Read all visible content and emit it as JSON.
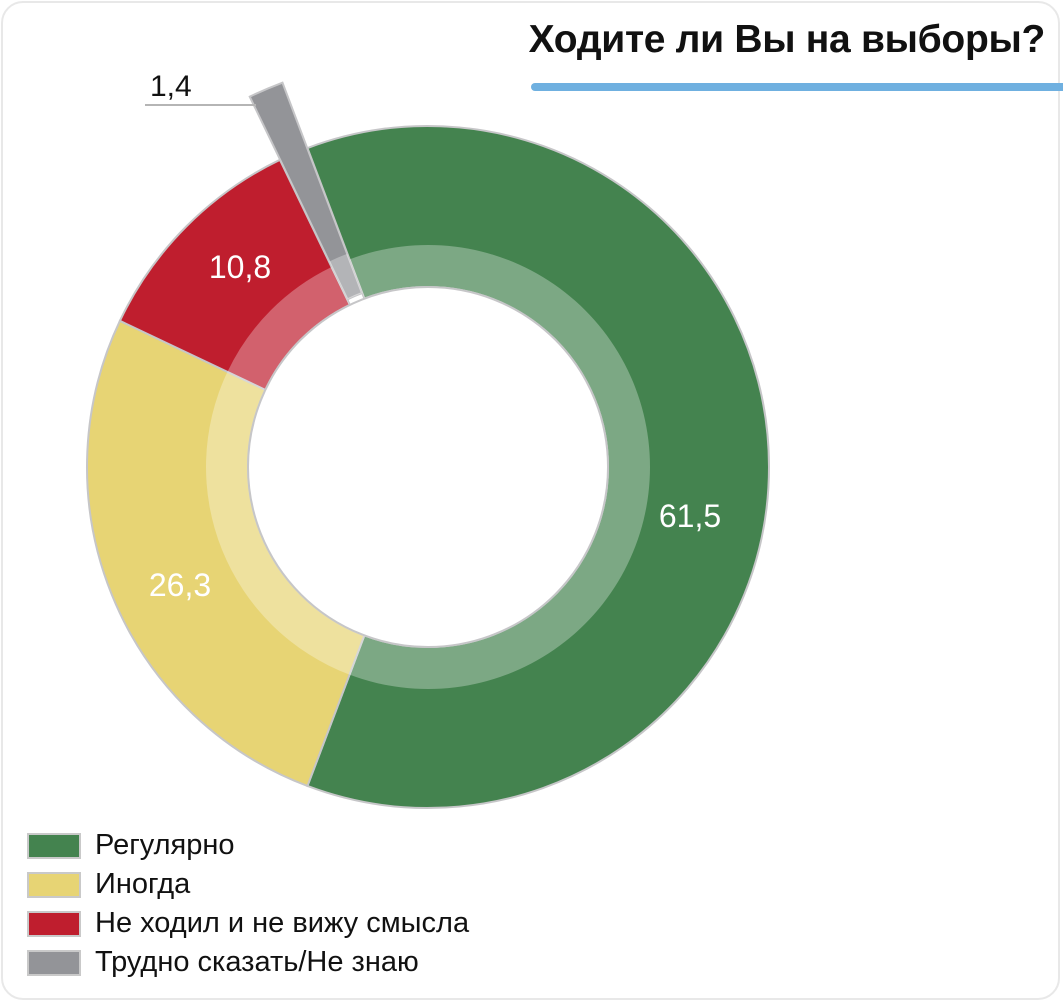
{
  "title": "Ходите ли Вы на выборы?",
  "colors": {
    "accent_rule": "#6fb0e0",
    "regularly": "#44834f",
    "sometimes": "#e7d474",
    "never": "#bf1e2e",
    "dont_know": "#939498"
  },
  "legend": [
    {
      "label": "Регулярно",
      "color": "#44834f"
    },
    {
      "label": "Иногда",
      "color": "#e7d474"
    },
    {
      "label": "Не ходил и не вижу смысла",
      "color": "#bf1e2e"
    },
    {
      "label": "Трудно сказать/Не знаю",
      "color": "#939498"
    }
  ],
  "labels": {
    "regularly": "61,5",
    "sometimes": "26,3",
    "never": "10,8",
    "dont_know": "1,4"
  },
  "chart_data": {
    "type": "pie",
    "subtype": "donut",
    "title": "Ходите ли Вы на выборы?",
    "categories": [
      "Регулярно",
      "Иногда",
      "Не ходил и не вижу смысла",
      "Трудно сказать/Не знаю"
    ],
    "values": [
      61.5,
      26.3,
      10.8,
      1.4
    ],
    "value_labels": [
      "61,5",
      "26,3",
      "10,8",
      "1,4"
    ],
    "colors": [
      "#44834f",
      "#e7d474",
      "#bf1e2e",
      "#939498"
    ],
    "exploded": [
      "Трудно сказать/Не знаю"
    ],
    "legend_position": "bottom-left",
    "unit": "%"
  }
}
